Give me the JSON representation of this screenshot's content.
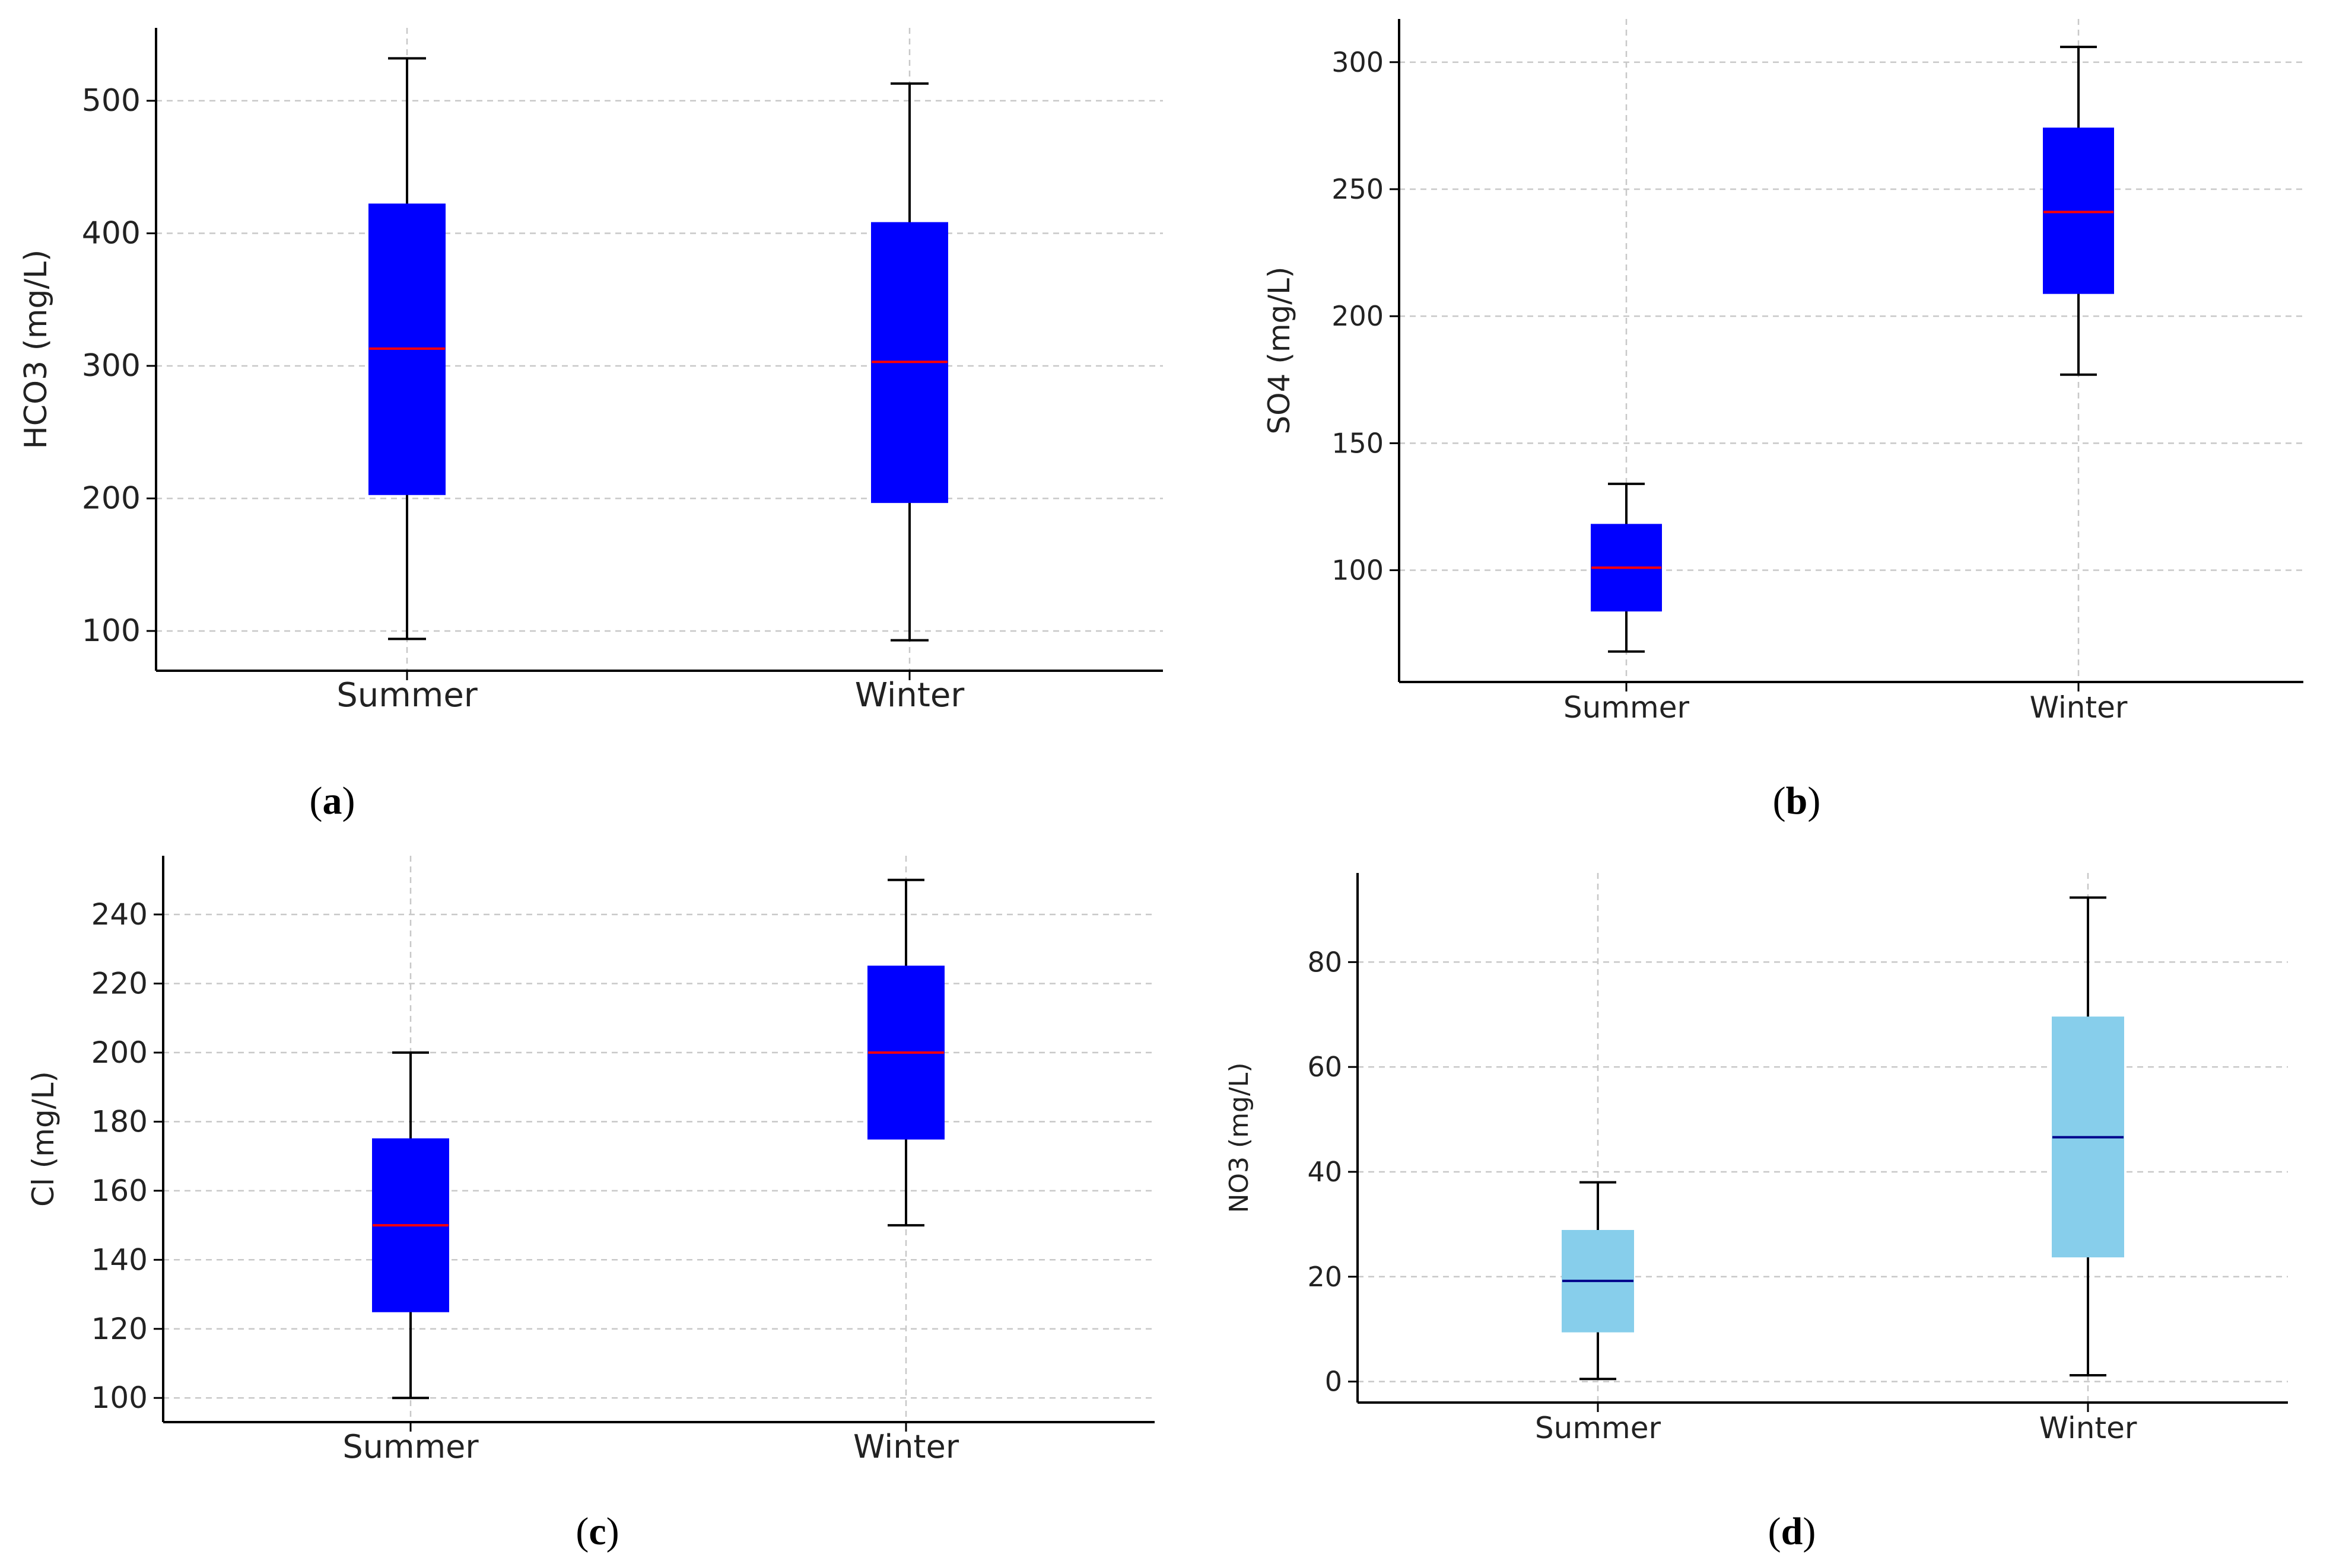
{
  "chart_data": [
    {
      "type": "box",
      "panel_label": "a",
      "categories": [
        "Summer",
        "Winter"
      ],
      "ylabel": "HCO3 (mg/L)",
      "xlabel": "",
      "ylim": [
        70,
        555
      ],
      "yticks": [
        100,
        200,
        300,
        400,
        500
      ],
      "grid": true,
      "box_color": "#0000FF",
      "median_color": "#FF0000",
      "series": [
        {
          "name": "Summer",
          "whisker_low": 94,
          "q1": 203,
          "median": 313,
          "q3": 422,
          "whisker_high": 532
        },
        {
          "name": "Winter",
          "whisker_low": 93,
          "q1": 197,
          "median": 303,
          "q3": 408,
          "whisker_high": 513
        }
      ]
    },
    {
      "type": "box",
      "panel_label": "b",
      "categories": [
        "Summer",
        "Winter"
      ],
      "ylabel": "SO4 (mg/L)",
      "xlabel": "",
      "ylim": [
        56,
        317
      ],
      "yticks": [
        100,
        150,
        200,
        250,
        300
      ],
      "grid": true,
      "box_color": "#0000FF",
      "median_color": "#FF0000",
      "series": [
        {
          "name": "Summer",
          "whisker_low": 68,
          "q1": 84,
          "median": 101,
          "q3": 118,
          "whisker_high": 134
        },
        {
          "name": "Winter",
          "whisker_low": 177,
          "q1": 209,
          "median": 241,
          "q3": 274,
          "whisker_high": 306
        }
      ]
    },
    {
      "type": "box",
      "panel_label": "c",
      "categories": [
        "Summer",
        "Winter"
      ],
      "ylabel": "Cl (mg/L)",
      "xlabel": "",
      "ylim": [
        93,
        257
      ],
      "yticks": [
        100,
        120,
        140,
        160,
        180,
        200,
        220,
        240
      ],
      "grid": true,
      "box_color": "#0000FF",
      "median_color": "#FF0000",
      "series": [
        {
          "name": "Summer",
          "whisker_low": 100,
          "q1": 125,
          "median": 150,
          "q3": 175,
          "whisker_high": 200
        },
        {
          "name": "Winter",
          "whisker_low": 150,
          "q1": 175,
          "median": 200,
          "q3": 225,
          "whisker_high": 250
        }
      ]
    },
    {
      "type": "box",
      "panel_label": "d",
      "categories": [
        "Summer",
        "Winter"
      ],
      "ylabel": "NO3 (mg/L)",
      "xlabel": "",
      "ylim": [
        -4,
        97
      ],
      "yticks": [
        0,
        20,
        40,
        60,
        80
      ],
      "grid": true,
      "box_color": "#87CEEB",
      "median_color": "#00008B",
      "series": [
        {
          "name": "Summer",
          "whisker_low": 0.5,
          "q1": 9.5,
          "median": 19.2,
          "q3": 28.8,
          "whisker_high": 38
        },
        {
          "name": "Winter",
          "whisker_low": 1.2,
          "q1": 23.8,
          "median": 46.6,
          "q3": 69.5,
          "whisker_high": 92.3
        }
      ]
    }
  ]
}
